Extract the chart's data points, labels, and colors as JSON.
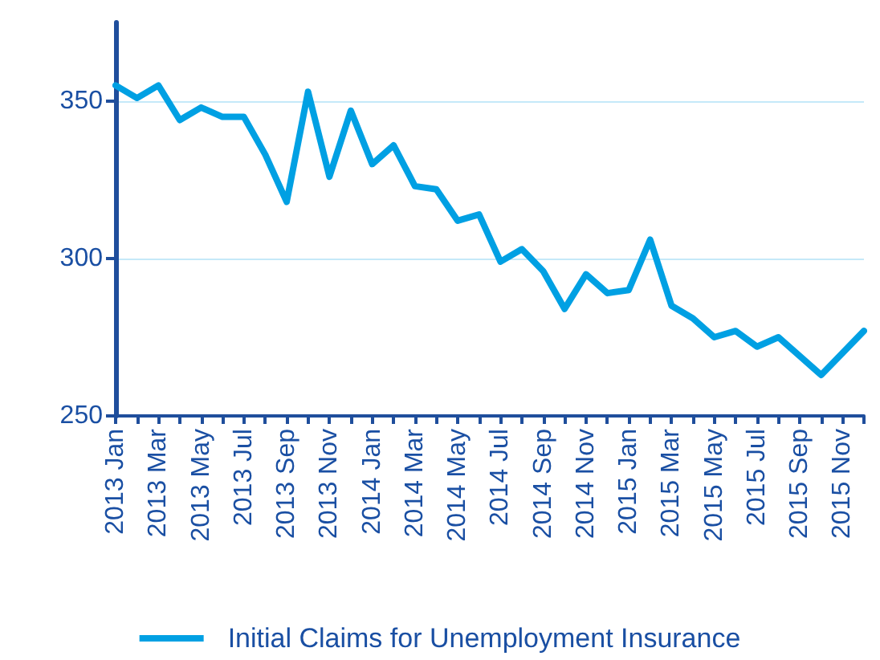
{
  "chart_data": {
    "type": "line",
    "categories": [
      "2013 Jan",
      null,
      "2013 Mar",
      null,
      "2013 May",
      null,
      "2013 Jul",
      null,
      "2013 Sep",
      null,
      "2013 Nov",
      null,
      "2014 Jan",
      null,
      "2014 Mar",
      null,
      "2014 May",
      null,
      "2014 Jul",
      null,
      "2014 Sep",
      null,
      "2014 Nov",
      null,
      "2015 Jan",
      null,
      "2015 Mar",
      null,
      "2015 May",
      null,
      "2015 Jul",
      null,
      "2015 Sep",
      null,
      "2015 Nov",
      null
    ],
    "series": [
      {
        "name": "Initial Claims for Unemployment Insurance",
        "color": "#00a0e3",
        "values": [
          355,
          351,
          355,
          344,
          348,
          345,
          345,
          333,
          318,
          353,
          326,
          347,
          330,
          336,
          323,
          322,
          312,
          314,
          299,
          303,
          296,
          284,
          295,
          289,
          290,
          306,
          285,
          281,
          275,
          277,
          272,
          275,
          269,
          263,
          270,
          277
        ]
      }
    ],
    "ylim": [
      250,
      375
    ],
    "yticks": [
      250,
      300,
      350
    ],
    "grid": "y",
    "legend": "bottom",
    "marker": "none",
    "line_style": "solid"
  }
}
